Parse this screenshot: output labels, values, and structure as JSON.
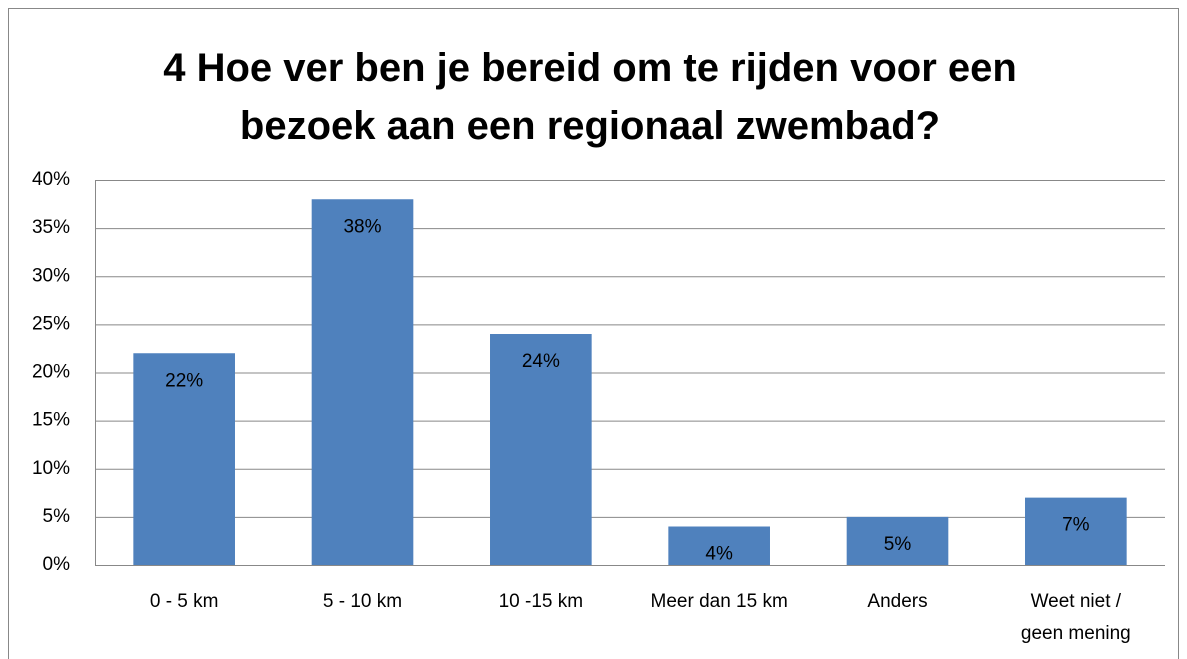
{
  "chart_data": {
    "type": "bar",
    "title": "4 Hoe ver ben je bereid om te rijden voor een bezoek aan een regionaal zwembad?",
    "categories": [
      "0 - 5 km",
      "5 - 10 km",
      "10 -15 km",
      "Meer dan 15 km",
      "Anders",
      "Weet niet / geen mening"
    ],
    "values": [
      22,
      38,
      24,
      4,
      5,
      7
    ],
    "value_labels": [
      "22%",
      "38%",
      "24%",
      "4%",
      "5%",
      "7%"
    ],
    "color": "#4f81bd",
    "ylim": [
      0,
      40
    ],
    "yticks": [
      {
        "value": 0,
        "label": "0%"
      },
      {
        "value": 5,
        "label": "5%"
      },
      {
        "value": 10,
        "label": "10%"
      },
      {
        "value": 15,
        "label": "15%"
      },
      {
        "value": 20,
        "label": "20%"
      },
      {
        "value": 25,
        "label": "25%"
      },
      {
        "value": 30,
        "label": "30%"
      },
      {
        "value": 35,
        "label": "35%"
      },
      {
        "value": 40,
        "label": "40%"
      }
    ],
    "grid": true
  }
}
